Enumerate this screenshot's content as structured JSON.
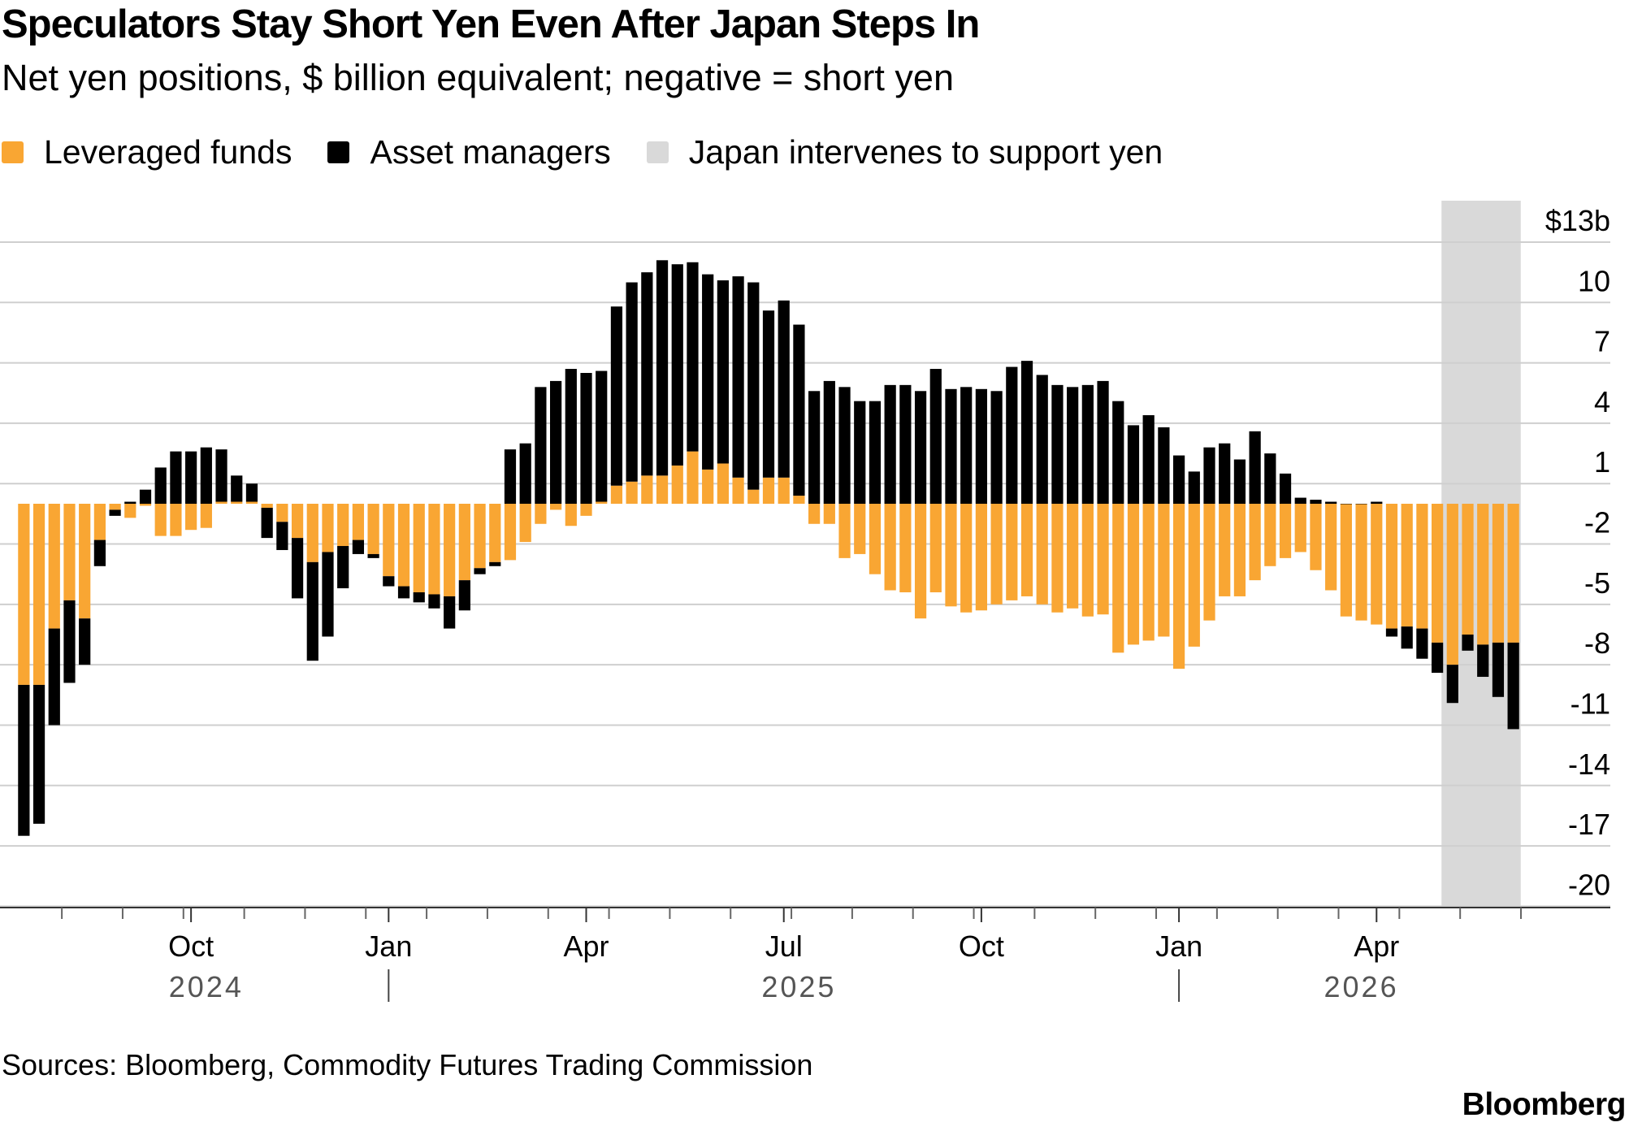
{
  "title": "Speculators Stay Short Yen Even After Japan Steps In",
  "subtitle": "Net yen positions, $ billion equivalent; negative = short yen",
  "legend": [
    {
      "key": "leveraged",
      "label": "Leveraged funds",
      "color": "#F9A633"
    },
    {
      "key": "asset",
      "label": "Asset managers",
      "color": "#000000"
    },
    {
      "key": "intervene",
      "label": "Japan intervenes to support yen",
      "color": "#D9D9D9"
    }
  ],
  "source": "Sources: Bloomberg, Commodity Futures Trading Commission",
  "brand": "Bloomberg",
  "chart_data": {
    "type": "bar",
    "stacked": true,
    "ylim": [
      -21,
      14
    ],
    "y_ticks": [
      {
        "value": 13,
        "label": "$13b"
      },
      {
        "value": 10,
        "label": "10"
      },
      {
        "value": 7,
        "label": "7"
      },
      {
        "value": 4,
        "label": "4"
      },
      {
        "value": 1,
        "label": "1"
      },
      {
        "value": -2,
        "label": "-2"
      },
      {
        "value": -5,
        "label": "-5"
      },
      {
        "value": -8,
        "label": "-8"
      },
      {
        "value": -11,
        "label": "-11"
      },
      {
        "value": -14,
        "label": "-14"
      },
      {
        "value": -17,
        "label": "-17"
      },
      {
        "value": -20,
        "label": "-20"
      }
    ],
    "grid": true,
    "y_axis_position": "right",
    "legend_position": "top-left",
    "x_month_labels": [
      {
        "label": "Oct",
        "index": 11
      },
      {
        "label": "Jan",
        "index": 24
      },
      {
        "label": "Apr",
        "index": 37
      },
      {
        "label": "Jul",
        "index": 50
      },
      {
        "label": "Oct",
        "index": 63
      },
      {
        "label": "Jan",
        "index": 76
      },
      {
        "label": "Apr",
        "index": 89
      }
    ],
    "x_year_labels": [
      {
        "label": "2024",
        "index": 12
      },
      {
        "label": "2025",
        "index": 51
      },
      {
        "label": "2026",
        "index": 88
      }
    ],
    "year_dividers": [
      24,
      76
    ],
    "intervention_window": [
      94,
      98
    ],
    "series": [
      {
        "name": "Leveraged funds",
        "color": "#F9A633",
        "values": [
          -9,
          -9,
          -6.2,
          -4.8,
          -5.7,
          -1.8,
          -0.3,
          -0.7,
          -0.1,
          -1.6,
          -1.6,
          -1.3,
          -1.2,
          0.1,
          0.1,
          0.1,
          -0.2,
          -0.9,
          -1.7,
          -2.9,
          -2.4,
          -2.1,
          -1.8,
          -2.5,
          -3.6,
          -4.1,
          -4.4,
          -4.5,
          -4.6,
          -3.8,
          -3.2,
          -2.9,
          -2.8,
          -1.9,
          -1,
          -0.3,
          -1.1,
          -0.6,
          0.1,
          0.9,
          1.1,
          1.4,
          1.4,
          1.9,
          2.6,
          1.7,
          2,
          1.3,
          0.7,
          1.3,
          1.3,
          0.4,
          -1,
          -1,
          -2.7,
          -2.5,
          -3.5,
          -4.3,
          -4.4,
          -5.7,
          -4.4,
          -5.1,
          -5.4,
          -5.3,
          -5,
          -4.8,
          -4.6,
          -5,
          -5.4,
          -5.2,
          -5.6,
          -5.5,
          -7.4,
          -7,
          -6.8,
          -6.6,
          -8.2,
          -7.1,
          -5.8,
          -4.6,
          -4.6,
          -3.8,
          -3.1,
          -2.7,
          -2.4,
          -3.3,
          -4.3,
          -5.6,
          -5.8,
          -6,
          -6.2,
          -6.1,
          -6.2,
          -6.9,
          -8,
          -6.5,
          -7,
          -6.9,
          -6.9
        ],
        "labels": [
          "-9",
          "-9",
          "-6.2",
          "-4.8",
          "-5.7",
          "-1.8",
          "-0.3",
          "-0.7",
          "-0.1",
          "-1.6",
          "-1.6",
          "-1.3",
          "-1.2",
          "0.1",
          "0.1",
          "0.1",
          "-0.2",
          "-0.9",
          "-1.7",
          "-2.9",
          "-2.4",
          "-2.1",
          "-1.8",
          "-2.5",
          "-3.6",
          "-4.1",
          "-4.4",
          "-4.5",
          "-4.6",
          "-3.8",
          "-3.2",
          "-2.9",
          "-2.8",
          "-1.9",
          "-1",
          "-0.3",
          "-1.1",
          "-0.6",
          "0.1",
          "0.9",
          "1.1",
          "1.4",
          "1.4",
          "1.9",
          "2.6",
          "1.7",
          "2",
          "1.3",
          "0.7",
          "1.3",
          "1.3",
          "0.4",
          "-1",
          "-1",
          "-2.7",
          "-2.5",
          "-3.5",
          "-4.3",
          "-4.4",
          "-5.7",
          "-4.4",
          "-5.1",
          "-5.4",
          "-5.3",
          "-5",
          "-4.8",
          "-4.6",
          "-5",
          "-5.4",
          "-5.2",
          "-5.6",
          "-5.5",
          "-7.4",
          "-7",
          "-6.8",
          "-6.6",
          "-8.2",
          "-7.1",
          "-5.8",
          "-4.6",
          "-4.6",
          "-3.8",
          "-3.1",
          "-2.7",
          "-2.4",
          "-3.3",
          "-4.3",
          "-5.6",
          "-5.8",
          "-6",
          "-6.2",
          "-6.1",
          "-6.2",
          "-6.9",
          "-8",
          "-6.5",
          "-7",
          "-6.9",
          "-6.9"
        ]
      },
      {
        "name": "Asset managers",
        "color": "#000000",
        "values": [
          -7.5,
          -6.9,
          -4.8,
          -4.1,
          -2.3,
          -1.3,
          -0.3,
          0.1,
          0.7,
          1.8,
          2.6,
          2.6,
          2.8,
          2.6,
          1.3,
          0.9,
          -1.5,
          -1.4,
          -3,
          -4.9,
          -4.2,
          -2.1,
          -0.7,
          -0.2,
          -0.5,
          -0.6,
          -0.5,
          -0.7,
          -1.6,
          -1.5,
          -0.3,
          -0.2,
          2.7,
          3,
          5.8,
          6.1,
          6.7,
          6.5,
          6.5,
          8.9,
          9.9,
          10.1,
          10.7,
          10,
          9.4,
          9.7,
          9.1,
          10,
          10.3,
          8.3,
          8.8,
          8.5,
          5.6,
          6.1,
          5.8,
          5.1,
          5.1,
          5.9,
          5.9,
          5.6,
          6.7,
          5.7,
          5.8,
          5.7,
          5.6,
          6.8,
          7.1,
          6.4,
          5.9,
          5.8,
          5.9,
          6.1,
          5.1,
          3.9,
          4.4,
          3.8,
          2.4,
          1.6,
          2.8,
          3,
          2.2,
          3.6,
          2.5,
          1.5,
          0.3,
          0.2,
          0.1,
          0,
          0,
          0.1,
          -0.4,
          -1.1,
          -1.5,
          -1.5,
          -1.9,
          -0.8,
          -1.6,
          -2.7,
          -4.3
        ]
      }
    ]
  }
}
